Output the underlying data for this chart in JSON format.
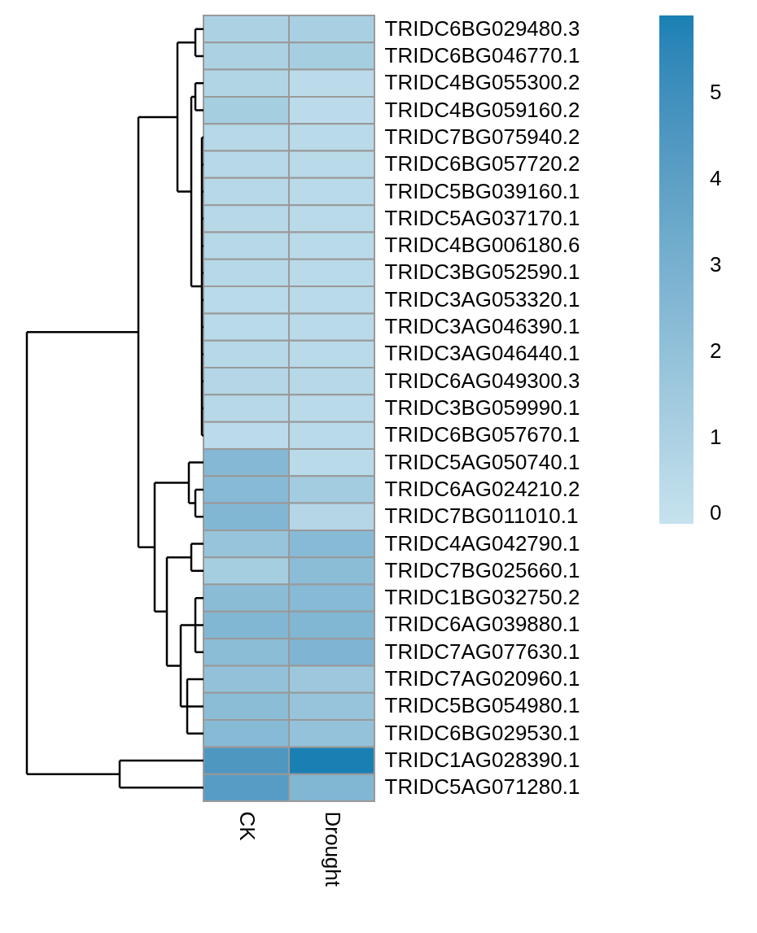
{
  "chart_data": {
    "type": "heatmap",
    "categories": [
      "CK",
      "Drought"
    ],
    "y_categories": [
      "TRIDC6BG029480.3",
      "TRIDC6BG046770.1",
      "TRIDC4BG055300.2",
      "TRIDC4BG059160.2",
      "TRIDC7BG075940.2",
      "TRIDC6BG057720.2",
      "TRIDC5BG039160.1",
      "TRIDC5AG037170.1",
      "TRIDC4BG006180.6",
      "TRIDC3BG052590.1",
      "TRIDC3AG053320.1",
      "TRIDC3AG046390.1",
      "TRIDC3AG046440.1",
      "TRIDC6AG049300.3",
      "TRIDC3BG059990.1",
      "TRIDC6BG057670.1",
      "TRIDC5AG050740.1",
      "TRIDC6AG024210.2",
      "TRIDC7BG011010.1",
      "TRIDC4AG042790.1",
      "TRIDC7BG025660.1",
      "TRIDC1BG032750.2",
      "TRIDC6AG039880.1",
      "TRIDC7AG077630.1",
      "TRIDC7AG020960.1",
      "TRIDC5BG054980.1",
      "TRIDC6BG029530.1",
      "TRIDC1AG028390.1",
      "TRIDC5AG071280.1"
    ],
    "cells": [
      [
        1.0,
        1.1
      ],
      [
        1.0,
        1.2
      ],
      [
        0.8,
        0.4
      ],
      [
        1.2,
        0.4
      ],
      [
        0.6,
        0.5
      ],
      [
        0.6,
        0.5
      ],
      [
        0.6,
        0.5
      ],
      [
        0.6,
        0.5
      ],
      [
        0.6,
        0.5
      ],
      [
        0.6,
        0.5
      ],
      [
        0.5,
        0.5
      ],
      [
        0.5,
        0.5
      ],
      [
        0.6,
        0.5
      ],
      [
        0.7,
        0.6
      ],
      [
        0.6,
        0.5
      ],
      [
        0.4,
        0.5
      ],
      [
        2.5,
        0.5
      ],
      [
        2.4,
        1.3
      ],
      [
        2.6,
        0.7
      ],
      [
        1.8,
        2.4
      ],
      [
        1.2,
        2.2
      ],
      [
        2.3,
        2.4
      ],
      [
        2.6,
        2.6
      ],
      [
        2.2,
        2.7
      ],
      [
        2.0,
        1.6
      ],
      [
        2.2,
        1.8
      ],
      [
        2.4,
        1.9
      ],
      [
        4.5,
        5.9
      ],
      [
        4.2,
        2.6
      ]
    ],
    "clim": [
      0,
      5.9
    ],
    "cticks": [
      0,
      1,
      2,
      3,
      4,
      5
    ],
    "colors": [
      "#c6e2ee",
      "#1a80b4"
    ]
  }
}
